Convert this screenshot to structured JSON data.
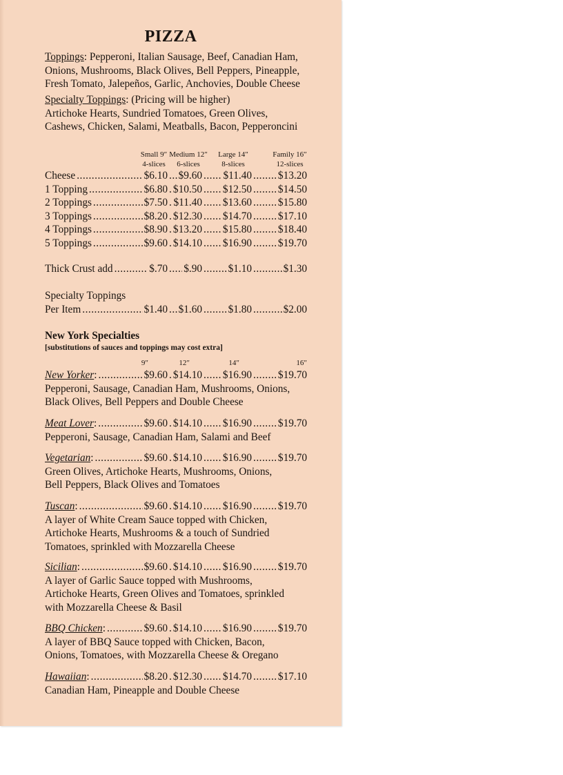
{
  "title": "PIZZA",
  "toppings": {
    "label": "Toppings",
    "lines": [
      "Pepperoni, Italian Sausage, Beef, Canadian Ham,",
      "Onions, Mushrooms, Black Olives, Bell Peppers, Pineapple,",
      "Fresh Tomato, Jalepeños, Garlic, Anchovies, Double Cheese"
    ]
  },
  "specialty_toppings": {
    "label": "Specialty Toppings",
    "note": "(Pricing will be higher)",
    "lines": [
      "Artichoke Hearts, Sundried Tomatoes, Green Olives,",
      "Cashews, Chicken, Salami, Meatballs, Bacon, Pepperoncini"
    ]
  },
  "sizes": [
    {
      "name": "Small 9″",
      "slices": "4-slices"
    },
    {
      "name": "Medium 12″",
      "slices": "6-slices"
    },
    {
      "name": "Large 14″",
      "slices": "8-slices"
    },
    {
      "name": "Family 16″",
      "slices": "12-slices"
    }
  ],
  "price_rows": [
    {
      "label": "Cheese",
      "prices": [
        "$6.10",
        "$9.60",
        "$11.40",
        "$13.20"
      ]
    },
    {
      "label": "1 Topping",
      "prices": [
        "$6.80",
        "$10.50",
        "$12.50",
        "$14.50"
      ]
    },
    {
      "label": "2 Toppings",
      "prices": [
        "$7.50",
        "$11.40",
        "$13.60",
        "$15.80"
      ]
    },
    {
      "label": "3 Toppings",
      "prices": [
        "$8.20",
        "$12.30",
        "$14.70",
        "$17.10"
      ]
    },
    {
      "label": "4 Toppings",
      "prices": [
        "$8.90",
        "$13.20",
        "$15.80",
        "$18.40"
      ]
    },
    {
      "label": "5 Toppings",
      "prices": [
        "$9.60",
        "$14.10",
        "$16.90",
        "$19.70"
      ]
    }
  ],
  "thick_crust": {
    "label": "Thick Crust add",
    "prices": [
      "$.70",
      "$.90",
      "$1.10",
      "$1.30"
    ]
  },
  "specialty_per_item": {
    "heading": "Specialty Toppings",
    "label": "Per Item",
    "prices": [
      "$1.40",
      "$1.60",
      "$1.80",
      "$2.00"
    ]
  },
  "ny": {
    "heading": "New York Specialties",
    "note": "[substitutions of sauces and toppings may cost extra]",
    "size_labels": [
      "9″",
      "12″",
      "14″",
      "16″"
    ],
    "items": [
      {
        "name": "New Yorker",
        "prices": [
          "$9.60",
          "$14.10",
          "$16.90",
          "$19.70"
        ],
        "lines": [
          "Pepperoni, Sausage, Canadian Ham, Mushrooms, Onions,",
          "Black Olives, Bell Peppers and Double Cheese"
        ]
      },
      {
        "name": "Meat Lover",
        "prices": [
          "$9.60",
          "$14.10",
          "$16.90",
          "$19.70"
        ],
        "lines": [
          "Pepperoni, Sausage, Canadian Ham, Salami and Beef"
        ]
      },
      {
        "name": "Vegetarian",
        "prices": [
          "$9.60",
          "$14.10",
          "$16.90",
          "$19.70"
        ],
        "lines": [
          "Green Olives, Artichoke Hearts, Mushrooms, Onions,",
          "Bell Peppers, Black Olives and Tomatoes"
        ]
      },
      {
        "name": "Tuscan",
        "prices": [
          "$9.60",
          "$14.10",
          "$16.90",
          "$19.70"
        ],
        "lines": [
          "A layer of White Cream Sauce topped with Chicken,",
          "Artichoke Hearts, Mushrooms & a touch of Sundried",
          "Tomatoes, sprinkled with Mozzarella Cheese"
        ]
      },
      {
        "name": "Sicilian",
        "prices": [
          "$9.60",
          "$14.10",
          "$16.90",
          "$19.70"
        ],
        "lines": [
          "A layer of Garlic Sauce topped with Mushrooms,",
          "Artichoke Hearts, Green Olives and Tomatoes, sprinkled",
          "with Mozzarella Cheese & Basil"
        ]
      },
      {
        "name": "BBQ Chicken",
        "prices": [
          "$9.60",
          "$14.10",
          "$16.90",
          "$19.70"
        ],
        "lines": [
          "A layer of BBQ Sauce topped with Chicken, Bacon,",
          "Onions, Tomatoes, with Mozzarella Cheese & Oregano"
        ]
      },
      {
        "name": "Hawaiian",
        "prices": [
          "$8.20",
          "$12.30",
          "$14.70",
          "$17.10"
        ],
        "lines": [
          "Canadian Ham, Pineapple and Double Cheese"
        ]
      }
    ]
  }
}
